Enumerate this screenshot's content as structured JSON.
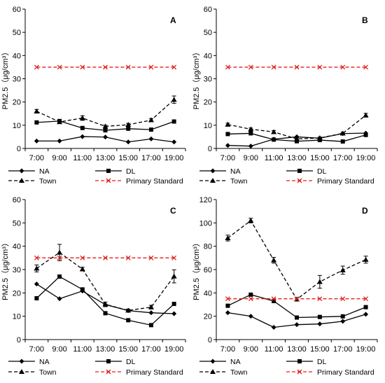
{
  "chart_data": [
    {
      "type": "line",
      "panel_label": "A",
      "ylabel": "PM2.5（μg/cm³）",
      "ylim": [
        0,
        60
      ],
      "yticks": [
        0,
        10,
        20,
        30,
        40,
        50,
        60
      ],
      "categories": [
        "7:00",
        "9:00",
        "11:00",
        "13:00",
        "15:00",
        "17:00",
        "19:00"
      ],
      "series": [
        {
          "name": "NA",
          "values": [
            3.2,
            3.2,
            5.1,
            4.9,
            2.8,
            4.1,
            2.8
          ]
        },
        {
          "name": "DL",
          "values": [
            11.2,
            11.8,
            8.8,
            7.8,
            8.5,
            8.1,
            11.6
          ]
        },
        {
          "name": "Town",
          "values": [
            16.0,
            11.4,
            13.1,
            9.5,
            10.2,
            12.2,
            21.0
          ],
          "errors": [
            0.8,
            0.6,
            1.0,
            0.5,
            0.6,
            0.7,
            1.6
          ]
        },
        {
          "name": "Primary Standard",
          "values": [
            35,
            35,
            35,
            35,
            35,
            35,
            35
          ]
        }
      ]
    },
    {
      "type": "line",
      "panel_label": "B",
      "ylabel": "PM2.5（μg/cm³）",
      "ylim": [
        0,
        60
      ],
      "yticks": [
        0,
        10,
        20,
        30,
        40,
        50,
        60
      ],
      "categories": [
        "7:00",
        "9:00",
        "11:00",
        "13:00",
        "15:00",
        "17:00",
        "19:00"
      ],
      "series": [
        {
          "name": "NA",
          "values": [
            1.3,
            1.0,
            4.0,
            5.0,
            4.4,
            6.4,
            6.6
          ]
        },
        {
          "name": "DL",
          "values": [
            6.2,
            6.5,
            3.8,
            3.1,
            3.6,
            3.0,
            5.8
          ]
        },
        {
          "name": "Town",
          "values": [
            10.3,
            8.3,
            7.1,
            4.1,
            4.5,
            6.5,
            14.3
          ],
          "errors": [
            0.6,
            0.5,
            0.6,
            0.4,
            0.4,
            0.5,
            0.8
          ]
        },
        {
          "name": "Primary Standard",
          "values": [
            35,
            35,
            35,
            35,
            35,
            35,
            35
          ]
        }
      ]
    },
    {
      "type": "line",
      "panel_label": "C",
      "ylabel": "PM2.5（μg/cm³）",
      "ylim": [
        0,
        60
      ],
      "yticks": [
        0,
        10,
        20,
        30,
        40,
        50,
        60
      ],
      "categories": [
        "7:00",
        "9:00",
        "11:00",
        "13:00",
        "15:00",
        "17:00",
        "19:00"
      ],
      "series": [
        {
          "name": "NA",
          "values": [
            23.8,
            17.5,
            20.8,
            15.0,
            12.4,
            11.5,
            11.1
          ]
        },
        {
          "name": "DL",
          "values": [
            17.7,
            27.0,
            21.5,
            11.3,
            8.3,
            6.2,
            15.3
          ]
        },
        {
          "name": "Town",
          "values": [
            30.5,
            37.3,
            30.2,
            15.1,
            12.5,
            13.9,
            27.1
          ],
          "errors": [
            1.5,
            3.5,
            0.8,
            1.0,
            0.6,
            0.8,
            2.8
          ]
        },
        {
          "name": "Primary Standard",
          "values": [
            35,
            35,
            35,
            35,
            35,
            35,
            35
          ]
        }
      ]
    },
    {
      "type": "line",
      "panel_label": "D",
      "ylabel": "PM2.5（μg/cm³）",
      "ylim": [
        0,
        120
      ],
      "yticks": [
        0,
        20,
        40,
        60,
        80,
        100,
        120
      ],
      "categories": [
        "7:00",
        "9:00",
        "11:00",
        "13:00",
        "15:00",
        "17:00",
        "19:00"
      ],
      "series": [
        {
          "name": "NA",
          "values": [
            23.0,
            20.0,
            10.5,
            12.8,
            13.4,
            15.7,
            21.7
          ]
        },
        {
          "name": "DL",
          "values": [
            29.0,
            38.5,
            33.0,
            18.9,
            19.4,
            19.9,
            27.8
          ]
        },
        {
          "name": "Town",
          "values": [
            87.0,
            102.0,
            68.0,
            34.5,
            49.5,
            59.5,
            68.5
          ],
          "errors": [
            2.5,
            2.0,
            2.5,
            1.5,
            5.5,
            3.5,
            3.0
          ]
        },
        {
          "name": "Primary Standard",
          "values": [
            35,
            35,
            35,
            35,
            35,
            35,
            35
          ]
        }
      ]
    }
  ],
  "colors": {
    "axis": "#000000",
    "standard": "#e02020",
    "series": "#000000"
  }
}
